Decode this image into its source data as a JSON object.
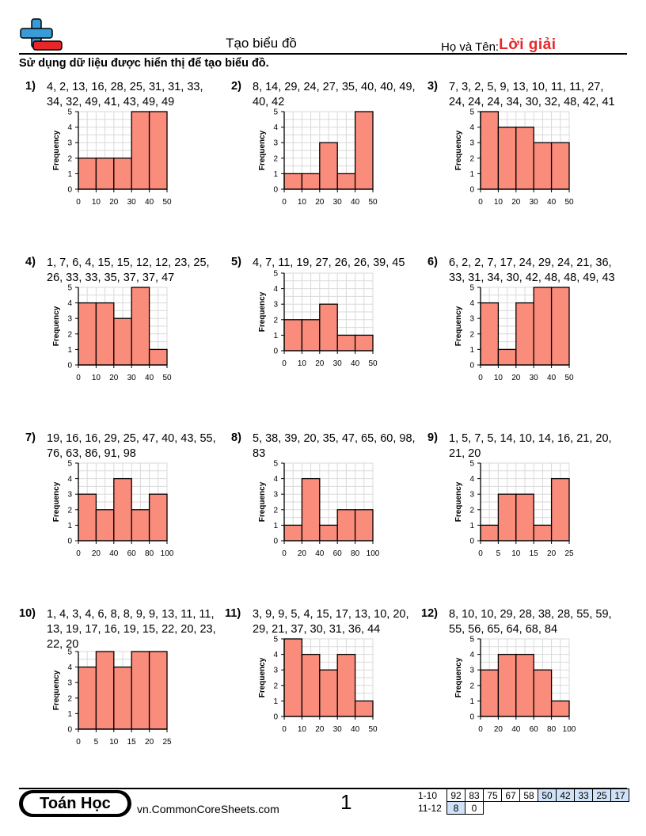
{
  "header": {
    "title": "Tạo biểu đồ",
    "name_label": "Họ và Tên:",
    "answer_label": "Lời giải"
  },
  "instructions": "Sử dụng dữ liệu được hiển thị để tạo biểu đồ.",
  "colors": {
    "bar": "#fa8c7c",
    "grid": "#d9d9d9",
    "accent": "#e8262a",
    "logo_blue": "#3a9bd9",
    "score_highlight": "#cfe2f7"
  },
  "problems": [
    {
      "num": "1)",
      "data": "4, 2, 13, 16, 28, 25, 31, 31, 33, 34, 32, 49, 41, 43, 49, 49"
    },
    {
      "num": "2)",
      "data": "8, 14, 29, 24, 27, 35, 40, 40, 49, 40, 42"
    },
    {
      "num": "3)",
      "data": "7, 3, 2, 5, 9, 13, 10, 11, 11, 27, 24, 24, 24, 34, 30, 32, 48, 42, 41"
    },
    {
      "num": "4)",
      "data": "1, 7, 6, 4, 15, 15, 12, 12, 23, 25, 26, 33, 33, 35, 37, 37, 47"
    },
    {
      "num": "5)",
      "data": "4, 7, 11, 19, 27, 26, 26, 39, 45"
    },
    {
      "num": "6)",
      "data": "6, 2, 2, 7, 17, 24, 29, 24, 21, 36, 33, 31, 34, 30, 42, 48, 48, 49, 43"
    },
    {
      "num": "7)",
      "data": "19, 16, 16, 29, 25, 47, 40, 43, 55, 76, 63, 86, 91, 98"
    },
    {
      "num": "8)",
      "data": "5, 38, 39, 20, 35, 47, 65, 60, 98, 83"
    },
    {
      "num": "9)",
      "data": "1, 5, 7, 5, 14, 10, 14, 16, 21, 20, 21, 20"
    },
    {
      "num": "10)",
      "data": "1, 4, 3, 4, 6, 8, 8, 9, 9, 13, 11, 11, 13, 19, 17, 16, 19, 15, 22, 20, 23, 22, 20"
    },
    {
      "num": "11)",
      "data": "3, 9, 9, 5, 4, 15, 17, 13, 10, 20, 29, 21, 37, 30, 31, 36, 44"
    },
    {
      "num": "12)",
      "data": "8, 10, 10, 29, 28, 38, 28, 55, 59, 55, 56, 65, 64, 68, 84"
    }
  ],
  "chart_data": [
    {
      "type": "bar",
      "ylabel": "Frequency",
      "ylim": [
        0,
        5
      ],
      "yticks": [
        "0",
        "1",
        "2",
        "3",
        "4",
        "5"
      ],
      "xticks": [
        "0",
        "10",
        "20",
        "30",
        "40",
        "50"
      ],
      "values": [
        2,
        2,
        2,
        5,
        5
      ]
    },
    {
      "type": "bar",
      "ylabel": "Frequency",
      "ylim": [
        0,
        5
      ],
      "yticks": [
        "0",
        "1",
        "2",
        "3",
        "4",
        "5"
      ],
      "xticks": [
        "0",
        "10",
        "20",
        "30",
        "40",
        "50"
      ],
      "values": [
        1,
        1,
        3,
        1,
        5
      ]
    },
    {
      "type": "bar",
      "ylabel": "Frequency",
      "ylim": [
        0,
        5
      ],
      "yticks": [
        "0",
        "1",
        "2",
        "3",
        "4",
        "5"
      ],
      "xticks": [
        "0",
        "10",
        "20",
        "30",
        "40",
        "50"
      ],
      "values": [
        5,
        4,
        4,
        3,
        3
      ]
    },
    {
      "type": "bar",
      "ylabel": "Frequency",
      "ylim": [
        0,
        5
      ],
      "yticks": [
        "0",
        "1",
        "2",
        "3",
        "4",
        "5"
      ],
      "xticks": [
        "0",
        "10",
        "20",
        "30",
        "40",
        "50"
      ],
      "values": [
        4,
        4,
        3,
        5,
        1
      ]
    },
    {
      "type": "bar",
      "ylabel": "Frequency",
      "ylim": [
        0,
        5
      ],
      "yticks": [
        "0",
        "1",
        "2",
        "3",
        "4",
        "5"
      ],
      "xticks": [
        "0",
        "10",
        "20",
        "30",
        "40",
        "50"
      ],
      "values": [
        2,
        2,
        3,
        1,
        1
      ]
    },
    {
      "type": "bar",
      "ylabel": "Frequency",
      "ylim": [
        0,
        5
      ],
      "yticks": [
        "0",
        "1",
        "2",
        "3",
        "4",
        "5"
      ],
      "xticks": [
        "0",
        "10",
        "20",
        "30",
        "40",
        "50"
      ],
      "values": [
        4,
        1,
        4,
        5,
        5
      ]
    },
    {
      "type": "bar",
      "ylabel": "Frequency",
      "ylim": [
        0,
        5
      ],
      "yticks": [
        "0",
        "1",
        "2",
        "3",
        "4",
        "5"
      ],
      "xticks": [
        "0",
        "20",
        "40",
        "60",
        "80",
        "100"
      ],
      "values": [
        3,
        2,
        4,
        2,
        3
      ]
    },
    {
      "type": "bar",
      "ylabel": "Frequency",
      "ylim": [
        0,
        5
      ],
      "yticks": [
        "0",
        "1",
        "2",
        "3",
        "4",
        "5"
      ],
      "xticks": [
        "0",
        "20",
        "40",
        "60",
        "80",
        "100"
      ],
      "values": [
        1,
        4,
        1,
        2,
        2
      ]
    },
    {
      "type": "bar",
      "ylabel": "Frequency",
      "ylim": [
        0,
        5
      ],
      "yticks": [
        "0",
        "1",
        "2",
        "3",
        "4",
        "5"
      ],
      "xticks": [
        "0",
        "5",
        "10",
        "15",
        "20",
        "25"
      ],
      "values": [
        1,
        3,
        3,
        1,
        4
      ]
    },
    {
      "type": "bar",
      "ylabel": "Frequency",
      "ylim": [
        0,
        5
      ],
      "yticks": [
        "0",
        "1",
        "2",
        "3",
        "4",
        "5"
      ],
      "xticks": [
        "0",
        "5",
        "10",
        "15",
        "20",
        "25"
      ],
      "values": [
        4,
        5,
        4,
        5,
        5
      ]
    },
    {
      "type": "bar",
      "ylabel": "Frequency",
      "ylim": [
        0,
        5
      ],
      "yticks": [
        "0",
        "1",
        "2",
        "3",
        "4",
        "5"
      ],
      "xticks": [
        "0",
        "10",
        "20",
        "30",
        "40",
        "50"
      ],
      "values": [
        5,
        4,
        3,
        4,
        1
      ]
    },
    {
      "type": "bar",
      "ylabel": "Frequency",
      "ylim": [
        0,
        5
      ],
      "yticks": [
        "0",
        "1",
        "2",
        "3",
        "4",
        "5"
      ],
      "xticks": [
        "0",
        "20",
        "40",
        "60",
        "80",
        "100"
      ],
      "values": [
        3,
        4,
        4,
        3,
        1
      ]
    }
  ],
  "footer": {
    "brand": "Toán Học",
    "site": "vn.CommonCoreSheets.com",
    "page_number": "1",
    "score_rows": [
      {
        "label": "1-10",
        "cells": [
          "92",
          "83",
          "75",
          "67",
          "58",
          "50",
          "42",
          "33",
          "25",
          "17"
        ]
      },
      {
        "label": "11-12",
        "cells": [
          "8",
          "0"
        ]
      }
    ]
  }
}
